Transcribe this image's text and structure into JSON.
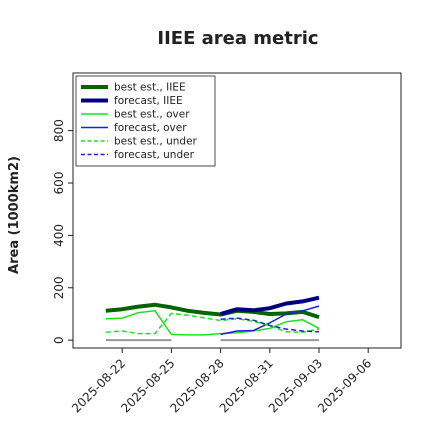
{
  "chart_data": {
    "type": "line",
    "title": "IIEE area metric",
    "xlabel": "",
    "ylabel": "Area (1000km2)",
    "ylim": [
      -30,
      1020
    ],
    "yticks": [
      0,
      200,
      400,
      600,
      800
    ],
    "xticks": [
      "2025-08-22",
      "2025-08-25",
      "2025-08-28",
      "2025-08-31",
      "2025-09-03",
      "2025-09-06"
    ],
    "highlight_tick": "2025-08-28",
    "xlim": [
      "2025-08-19",
      "2025-09-08"
    ],
    "grid": false,
    "legend_position": "top-left",
    "series": [
      {
        "name": "best est., IIEE",
        "color": "#006400",
        "dash": "solid",
        "width": 4,
        "points": [
          [
            "2025-08-21",
            112
          ],
          [
            "2025-08-22",
            118
          ],
          [
            "2025-08-23",
            128
          ],
          [
            "2025-08-24",
            135
          ],
          [
            "2025-08-25",
            125
          ],
          [
            "2025-08-26",
            112
          ],
          [
            "2025-08-27",
            104
          ],
          [
            "2025-08-28",
            98
          ],
          [
            "2025-08-29",
            112
          ],
          [
            "2025-08-30",
            108
          ],
          [
            "2025-08-31",
            100
          ],
          [
            "2025-09-01",
            102
          ],
          [
            "2025-09-02",
            108
          ],
          [
            "2025-09-03",
            88
          ]
        ]
      },
      {
        "name": "forecast, IIEE",
        "color": "#00007f",
        "dash": "solid",
        "width": 4,
        "points": [
          [
            "2025-08-28",
            100
          ],
          [
            "2025-08-29",
            118
          ],
          [
            "2025-08-30",
            114
          ],
          [
            "2025-08-31",
            122
          ],
          [
            "2025-09-01",
            140
          ],
          [
            "2025-09-02",
            148
          ],
          [
            "2025-09-03",
            162
          ]
        ]
      },
      {
        "name": "best est., over",
        "color": "#22dd22",
        "dash": "solid",
        "width": 1.5,
        "points": [
          [
            "2025-08-21",
            82
          ],
          [
            "2025-08-22",
            84
          ],
          [
            "2025-08-23",
            105
          ],
          [
            "2025-08-24",
            112
          ],
          [
            "2025-08-25",
            22
          ],
          [
            "2025-08-26",
            20
          ],
          [
            "2025-08-27",
            20
          ],
          [
            "2025-08-28",
            25
          ],
          [
            "2025-08-29",
            28
          ],
          [
            "2025-08-30",
            35
          ],
          [
            "2025-08-31",
            45
          ],
          [
            "2025-09-01",
            70
          ],
          [
            "2025-09-02",
            78
          ],
          [
            "2025-09-03",
            45
          ]
        ]
      },
      {
        "name": "forecast, over",
        "color": "#1f1fdd",
        "dash": "solid",
        "width": 1.5,
        "points": [
          [
            "2025-08-28",
            22
          ],
          [
            "2025-08-29",
            35
          ],
          [
            "2025-08-30",
            37
          ],
          [
            "2025-08-31",
            66
          ],
          [
            "2025-09-01",
            100
          ],
          [
            "2025-09-02",
            112
          ],
          [
            "2025-09-03",
            130
          ]
        ]
      },
      {
        "name": "best est., under",
        "color": "#22dd22",
        "dash": "dashed",
        "width": 1.5,
        "points": [
          [
            "2025-08-21",
            30
          ],
          [
            "2025-08-22",
            35
          ],
          [
            "2025-08-23",
            25
          ],
          [
            "2025-08-24",
            25
          ],
          [
            "2025-08-25",
            102
          ],
          [
            "2025-08-26",
            95
          ],
          [
            "2025-08-27",
            85
          ],
          [
            "2025-08-28",
            75
          ],
          [
            "2025-08-29",
            82
          ],
          [
            "2025-08-30",
            72
          ],
          [
            "2025-08-31",
            55
          ],
          [
            "2025-09-01",
            32
          ],
          [
            "2025-09-02",
            30
          ],
          [
            "2025-09-03",
            42
          ]
        ]
      },
      {
        "name": "forecast, under",
        "color": "#1f1fdd",
        "dash": "dashed",
        "width": 1.5,
        "points": [
          [
            "2025-08-28",
            80
          ],
          [
            "2025-08-29",
            84
          ],
          [
            "2025-08-30",
            76
          ],
          [
            "2025-08-31",
            56
          ],
          [
            "2025-09-01",
            42
          ],
          [
            "2025-09-02",
            35
          ],
          [
            "2025-09-03",
            32
          ]
        ]
      }
    ],
    "zero_bars": [
      {
        "start": "2025-08-21",
        "end": "2025-08-25",
        "color": "#999999"
      },
      {
        "start": "2025-08-28",
        "end": "2025-09-03",
        "color": "#999999"
      }
    ]
  }
}
